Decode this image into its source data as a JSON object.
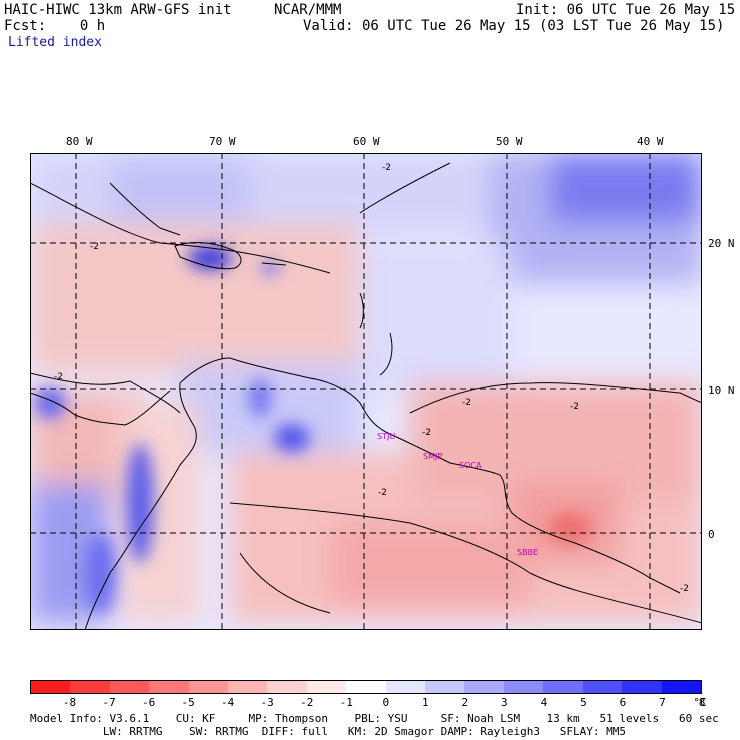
{
  "header": {
    "model": "HAIC-HIWC 13km ARW-GFS init",
    "org": "NCAR/MMM",
    "init": "Init: 06 UTC Tue 26 May 15",
    "fcst": "Fcst:    0 h",
    "valid": "Valid: 06 UTC Tue 26 May 15 (03 LST Tue 26 May 15)",
    "field": "Lifted index"
  },
  "map": {
    "lon_labels": [
      "80 W",
      "70 W",
      "60 W",
      "50 W",
      "40 W"
    ],
    "lat_labels": [
      "20 N",
      "10 N",
      "0"
    ],
    "stations": [
      "STJU",
      "SMJP",
      "SOCA",
      "SBBE"
    ],
    "contour_label": "-2"
  },
  "colorbar": {
    "ticks": [
      "-8",
      "-7",
      "-6",
      "-5",
      "-4",
      "-3",
      "-2",
      "-1",
      "0",
      "1",
      "2",
      "3",
      "4",
      "5",
      "6",
      "7",
      "8",
      "°C"
    ],
    "colors": [
      "#ff1c1c",
      "#ff3c3c",
      "#ff5a5a",
      "#ff7878",
      "#ff9696",
      "#ffb4b4",
      "#ffd2d2",
      "#ffeaea",
      "#ffffff",
      "#e6e6ff",
      "#c8c8ff",
      "#aaaaff",
      "#8c8cff",
      "#6e6eff",
      "#5050ff",
      "#3232ff",
      "#1414ff"
    ],
    "unit": "°C"
  },
  "info": {
    "line1": "Model Info: V3.6.1    CU: KF     MP: Thompson    PBL: YSU     SF: Noah LSM    13 km   51 levels   60 sec",
    "line2": "           LW: RRTMG    SW: RRTMG  DIFF: full   KM: 2D Smagor DAMP: Rayleigh3   SFLAY: MM5"
  }
}
